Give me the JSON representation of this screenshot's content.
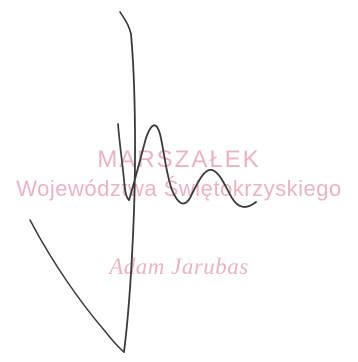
{
  "stamp": {
    "title": "MARSZAŁEK",
    "office": "Województwa Świętokrzyskiego",
    "name": "Adam Jarubas",
    "color": "#e8a6b6"
  },
  "signature": {
    "color": "#3a3a3a",
    "style": "handwritten"
  }
}
